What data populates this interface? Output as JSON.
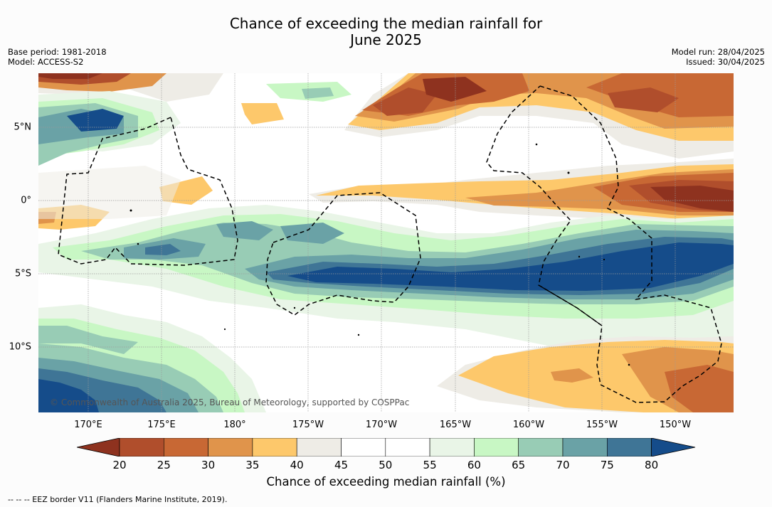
{
  "title_line1": "Chance of exceeding the median rainfall for",
  "title_line2": "June 2025",
  "meta": {
    "base_period": "Base period: 1981-2018",
    "model": "Model: ACCESS-S2",
    "model_run": "Model run: 28/04/2025",
    "issued": "Issued: 30/04/2025"
  },
  "lat_labels": [
    "5°N",
    "0°",
    "5°S",
    "10°S"
  ],
  "lon_labels": [
    "170°E",
    "175°E",
    "180°",
    "175°W",
    "170°W",
    "165°W",
    "160°W",
    "155°W",
    "150°W"
  ],
  "copyright": "© Commonwealth of Australia 2025, Bureau of Meteorology, supported by COSPPac",
  "colorbar": {
    "ticks": [
      "20",
      "25",
      "30",
      "35",
      "40",
      "45",
      "50",
      "55",
      "60",
      "65",
      "70",
      "75",
      "80"
    ],
    "colors": [
      "#8e321f",
      "#b04e2c",
      "#c86834",
      "#e0944b",
      "#fdc86b",
      "#eeece6",
      "#ffffff",
      "#ffffff",
      "#e9f5e7",
      "#c8f7c4",
      "#98ccb5",
      "#6aa2a6",
      "#3f7596",
      "#154c8a"
    ],
    "label": "Chance of exceeding median rainfall (%)"
  },
  "legend_note": "--  --  -- EEZ border V11 (Flanders Marine Institute, 2019)."
}
